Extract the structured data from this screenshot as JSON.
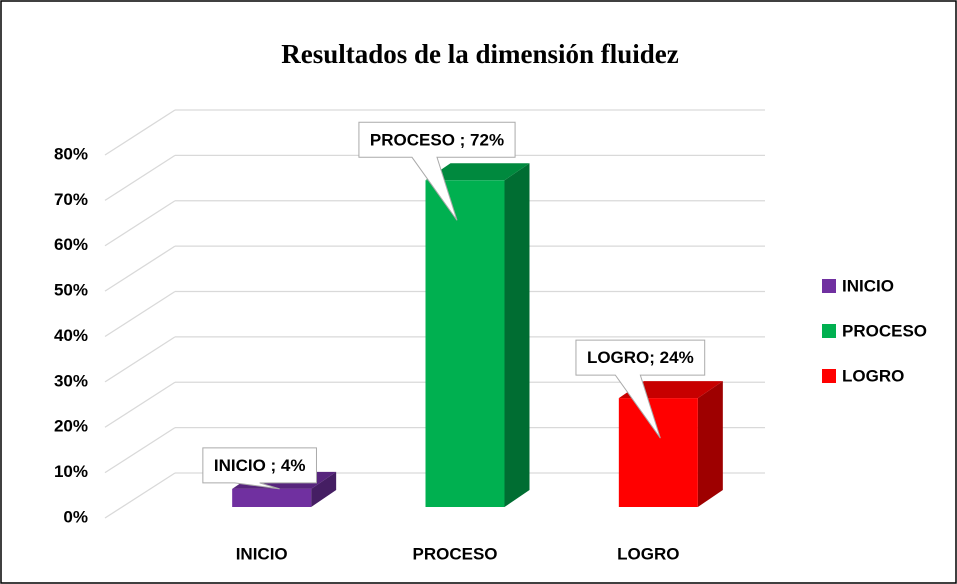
{
  "chart_data": {
    "type": "bar3d",
    "title": "Resultados de la dimensión fluidez",
    "categories": [
      "INICIO",
      "PROCESO",
      "LOGRO"
    ],
    "values": [
      4,
      72,
      24
    ],
    "value_labels": [
      "INICIO ; 4%",
      "PROCESO ; 72%",
      "LOGRO; 24%"
    ],
    "colors": [
      "#7030a0",
      "#00b050",
      "#ff0000"
    ],
    "ylim": [
      0,
      80
    ],
    "yticks": [
      {
        "value": 0,
        "label": "0%"
      },
      {
        "value": 10,
        "label": "10%"
      },
      {
        "value": 20,
        "label": "20%"
      },
      {
        "value": 30,
        "label": "30%"
      },
      {
        "value": 40,
        "label": "40%"
      },
      {
        "value": 50,
        "label": "50%"
      },
      {
        "value": 60,
        "label": "60%"
      },
      {
        "value": 70,
        "label": "70%"
      },
      {
        "value": 80,
        "label": "80%"
      }
    ],
    "grid": true,
    "legend": "right"
  }
}
